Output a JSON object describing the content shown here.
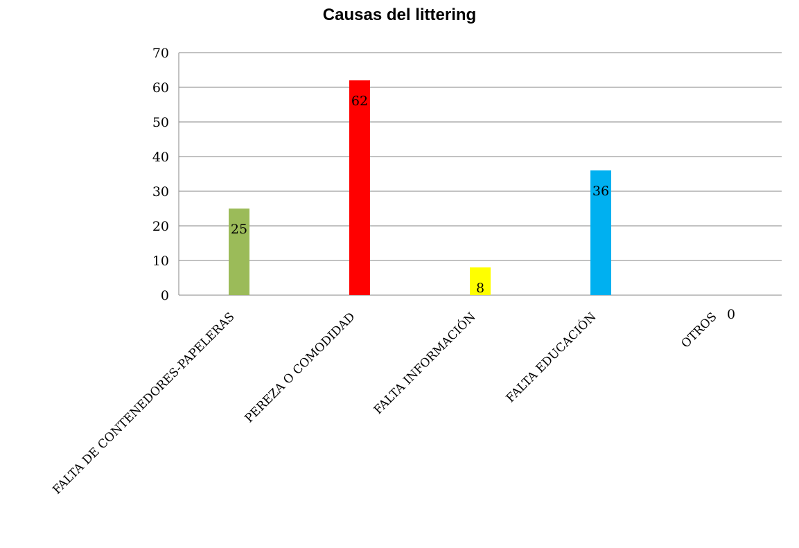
{
  "chart_data": {
    "type": "bar",
    "title": "Causas del littering",
    "categories": [
      "FALTA DE CONTENEDORES-PAPELERAS",
      "PEREZA O COMODIDAD",
      "FALTA INFORMACIÓN",
      "FALTA EDUCACIÓN",
      "OTROS"
    ],
    "values": [
      25,
      62,
      8,
      36,
      0
    ],
    "bar_colors": [
      "#9bbb59",
      "#ff0000",
      "#ffff00",
      "#00b0f0",
      "#7f7f7f"
    ],
    "data_labels": [
      "25",
      "62",
      "8",
      "36",
      "0"
    ],
    "ylim": [
      0,
      70
    ],
    "yticks": [
      0,
      10,
      20,
      30,
      40,
      50,
      60,
      70
    ],
    "xlabel": "",
    "ylabel": "",
    "grid": true,
    "legend": "none"
  }
}
